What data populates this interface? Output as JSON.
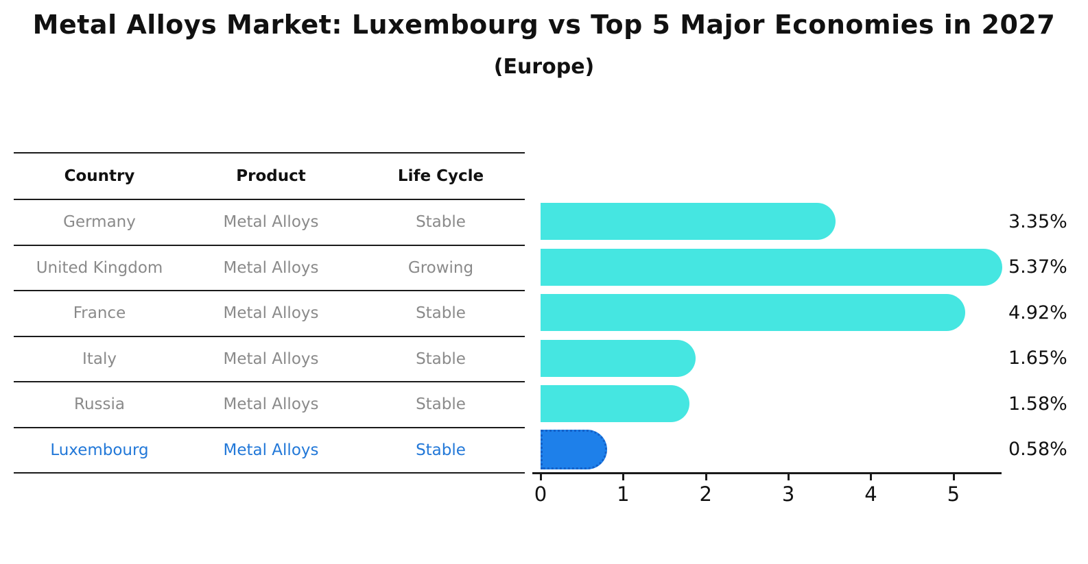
{
  "title": "Metal Alloys Market: Luxembourg vs Top 5 Major Economies in 2027",
  "subtitle": "(Europe)",
  "table": {
    "headers": [
      "Country",
      "Product",
      "Life Cycle"
    ],
    "rows": [
      {
        "country": "Germany",
        "product": "Metal Alloys",
        "life_cycle": "Stable",
        "highlighted": false
      },
      {
        "country": "United Kingdom",
        "product": "Metal Alloys",
        "life_cycle": "Growing",
        "highlighted": false
      },
      {
        "country": "France",
        "product": "Metal Alloys",
        "life_cycle": "Stable",
        "highlighted": false
      },
      {
        "country": "Italy",
        "product": "Metal Alloys",
        "life_cycle": "Stable",
        "highlighted": false
      },
      {
        "country": "Russia",
        "product": "Metal Alloys",
        "life_cycle": "Stable",
        "highlighted": false
      },
      {
        "country": "Luxembourg",
        "product": "Metal Alloys",
        "life_cycle": "Stable",
        "highlighted": true
      }
    ]
  },
  "chart_data": {
    "type": "bar",
    "orientation": "horizontal",
    "title": "Metal Alloys Market: Luxembourg vs Top 5 Major Economies in 2027",
    "subtitle": "(Europe)",
    "categories": [
      "Germany",
      "United Kingdom",
      "France",
      "Italy",
      "Russia",
      "Luxembourg"
    ],
    "values": [
      3.35,
      5.37,
      4.92,
      1.65,
      1.58,
      0.58
    ],
    "labels": [
      "3.35%",
      "5.37%",
      "4.92%",
      "1.65%",
      "1.58%",
      "0.58%"
    ],
    "xlabel": "",
    "ylabel": "",
    "xlim": [
      0,
      5.55
    ],
    "x_ticks": [
      0,
      1,
      2,
      3,
      4,
      5
    ],
    "grid": false,
    "legend": false,
    "highlight_index": 5
  },
  "colors": {
    "bar": "#45E6E1",
    "highlight_bar": "#1E80EA",
    "highlight_border": "#1360C8",
    "highlight_text": "#2278D8",
    "row_text": "#8a8a8a",
    "axis": "#1a1a1a",
    "text": "#111111"
  }
}
